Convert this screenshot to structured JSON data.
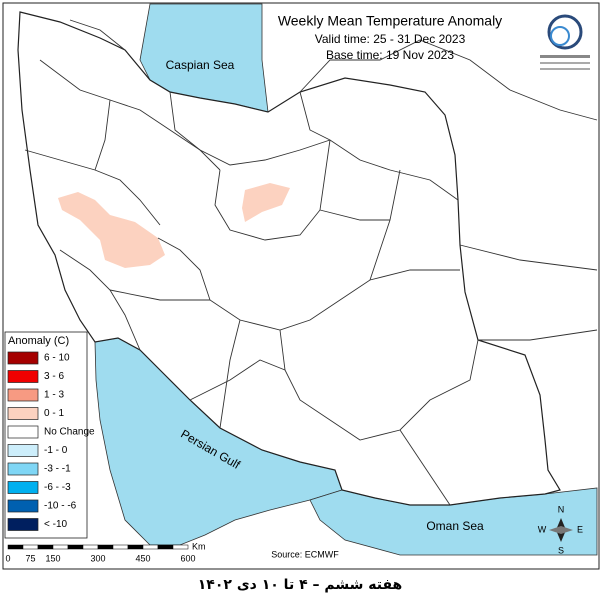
{
  "header": {
    "title": "Weekly Mean Temperature Anomaly",
    "valid_time": "Valid time: 25 - 31 Dec 2023",
    "base_time": "Base time: 19 Nov 2023"
  },
  "seas": {
    "caspian": "Caspian Sea",
    "gulf": "Persian Gulf",
    "oman": "Oman Sea"
  },
  "legend": {
    "title": "Anomaly (C)",
    "items": [
      {
        "label": "6 - 10",
        "color": "#a50000"
      },
      {
        "label": "3 - 6",
        "color": "#f00000"
      },
      {
        "label": "1 - 3",
        "color": "#f79a82"
      },
      {
        "label": "0 - 1",
        "color": "#fcd2c0"
      },
      {
        "label": "No Change",
        "color": "#ffffff"
      },
      {
        "label": "-1 - 0",
        "color": "#cdeefb"
      },
      {
        "label": "-3 - -1",
        "color": "#7fd6f5"
      },
      {
        "label": "-6 - -3",
        "color": "#00b0ef"
      },
      {
        "label": "-10 - -6",
        "color": "#0060b0"
      },
      {
        "label": "< -10",
        "color": "#001f5f"
      }
    ]
  },
  "scale": {
    "ticks": [
      0,
      75,
      150,
      300,
      450,
      600
    ],
    "unit": "Km"
  },
  "compass": {
    "n": "N",
    "s": "S",
    "e": "E",
    "w": "W"
  },
  "source": "Source: ECMWF",
  "footer": "هفته ششم – ۴ تا ۱۰ دی ۱۴۰۲"
}
